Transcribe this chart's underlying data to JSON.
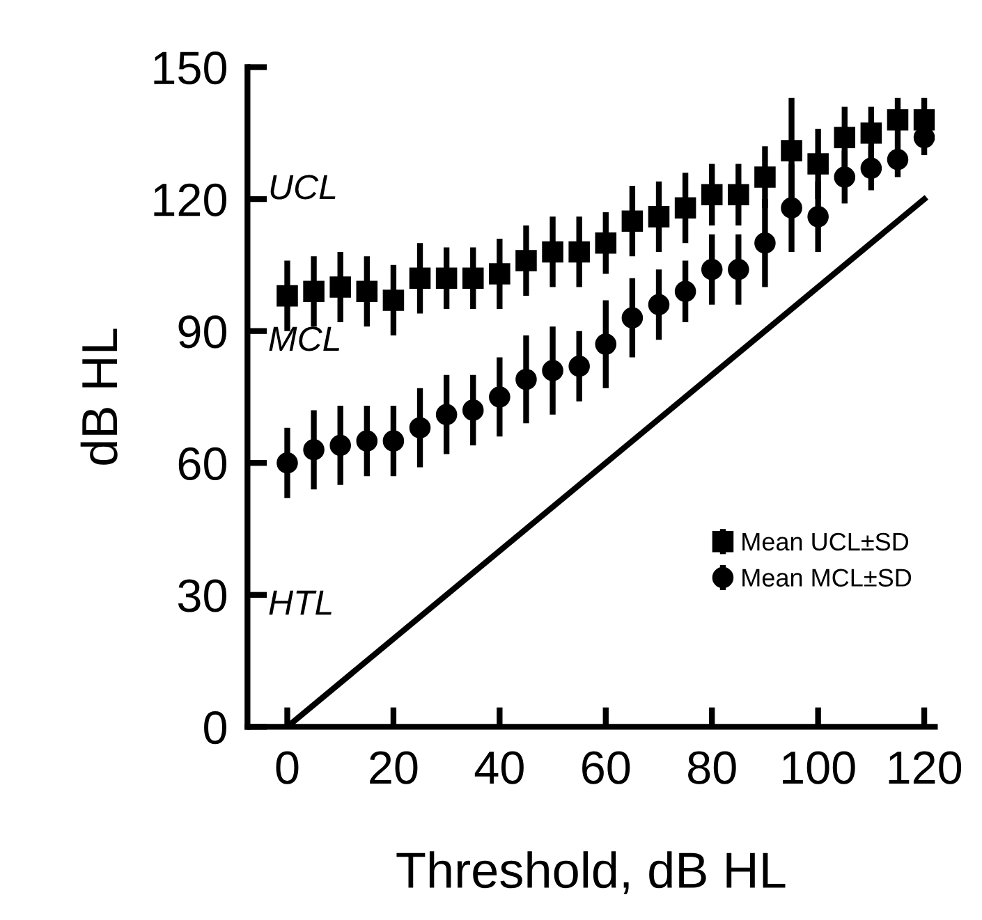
{
  "chart_data": {
    "type": "scatter",
    "xlabel": "Threshold, dB HL",
    "ylabel": "dB HL",
    "x": [
      0,
      5,
      10,
      15,
      20,
      25,
      30,
      35,
      40,
      45,
      50,
      55,
      60,
      65,
      70,
      75,
      80,
      85,
      90,
      95,
      100,
      105,
      110,
      115,
      120
    ],
    "series": [
      {
        "name": "Mean UCL±SD",
        "color": "#000000",
        "marker": "square",
        "values": [
          98,
          99,
          100,
          99,
          97,
          102,
          102,
          102,
          103,
          106,
          108,
          108,
          110,
          115,
          116,
          118,
          121,
          121,
          125,
          131,
          128,
          134,
          135,
          138,
          138
        ],
        "errors": [
          8,
          8,
          8,
          8,
          8,
          8,
          7,
          7,
          8,
          8,
          8,
          8,
          7,
          8,
          8,
          8,
          7,
          7,
          7,
          12,
          8,
          7,
          6,
          5,
          5
        ]
      },
      {
        "name": "Mean MCL±SD",
        "color": "#000000",
        "marker": "circle",
        "values": [
          60,
          63,
          64,
          65,
          65,
          68,
          71,
          72,
          75,
          79,
          81,
          82,
          87,
          93,
          96,
          99,
          104,
          104,
          110,
          118,
          116,
          125,
          127,
          129,
          134
        ],
        "errors": [
          8,
          9,
          9,
          8,
          8,
          9,
          9,
          8,
          9,
          10,
          10,
          8,
          10,
          9,
          8,
          7,
          8,
          8,
          10,
          10,
          8,
          6,
          5,
          4,
          4
        ]
      },
      {
        "type": "line",
        "color": "#000000",
        "marker": "none",
        "x": [
          0,
          120
        ],
        "values": [
          0,
          120
        ]
      }
    ],
    "annotations": [
      "UCL",
      "MCL",
      "HTL"
    ],
    "xlim": [
      -7.5,
      122
    ],
    "ylim": [
      0,
      150
    ],
    "xticks": [
      0,
      20,
      40,
      60,
      80,
      100,
      120
    ],
    "yticks": [
      0,
      30,
      60,
      90,
      120,
      150
    ],
    "legend": "right",
    "grid": false
  }
}
